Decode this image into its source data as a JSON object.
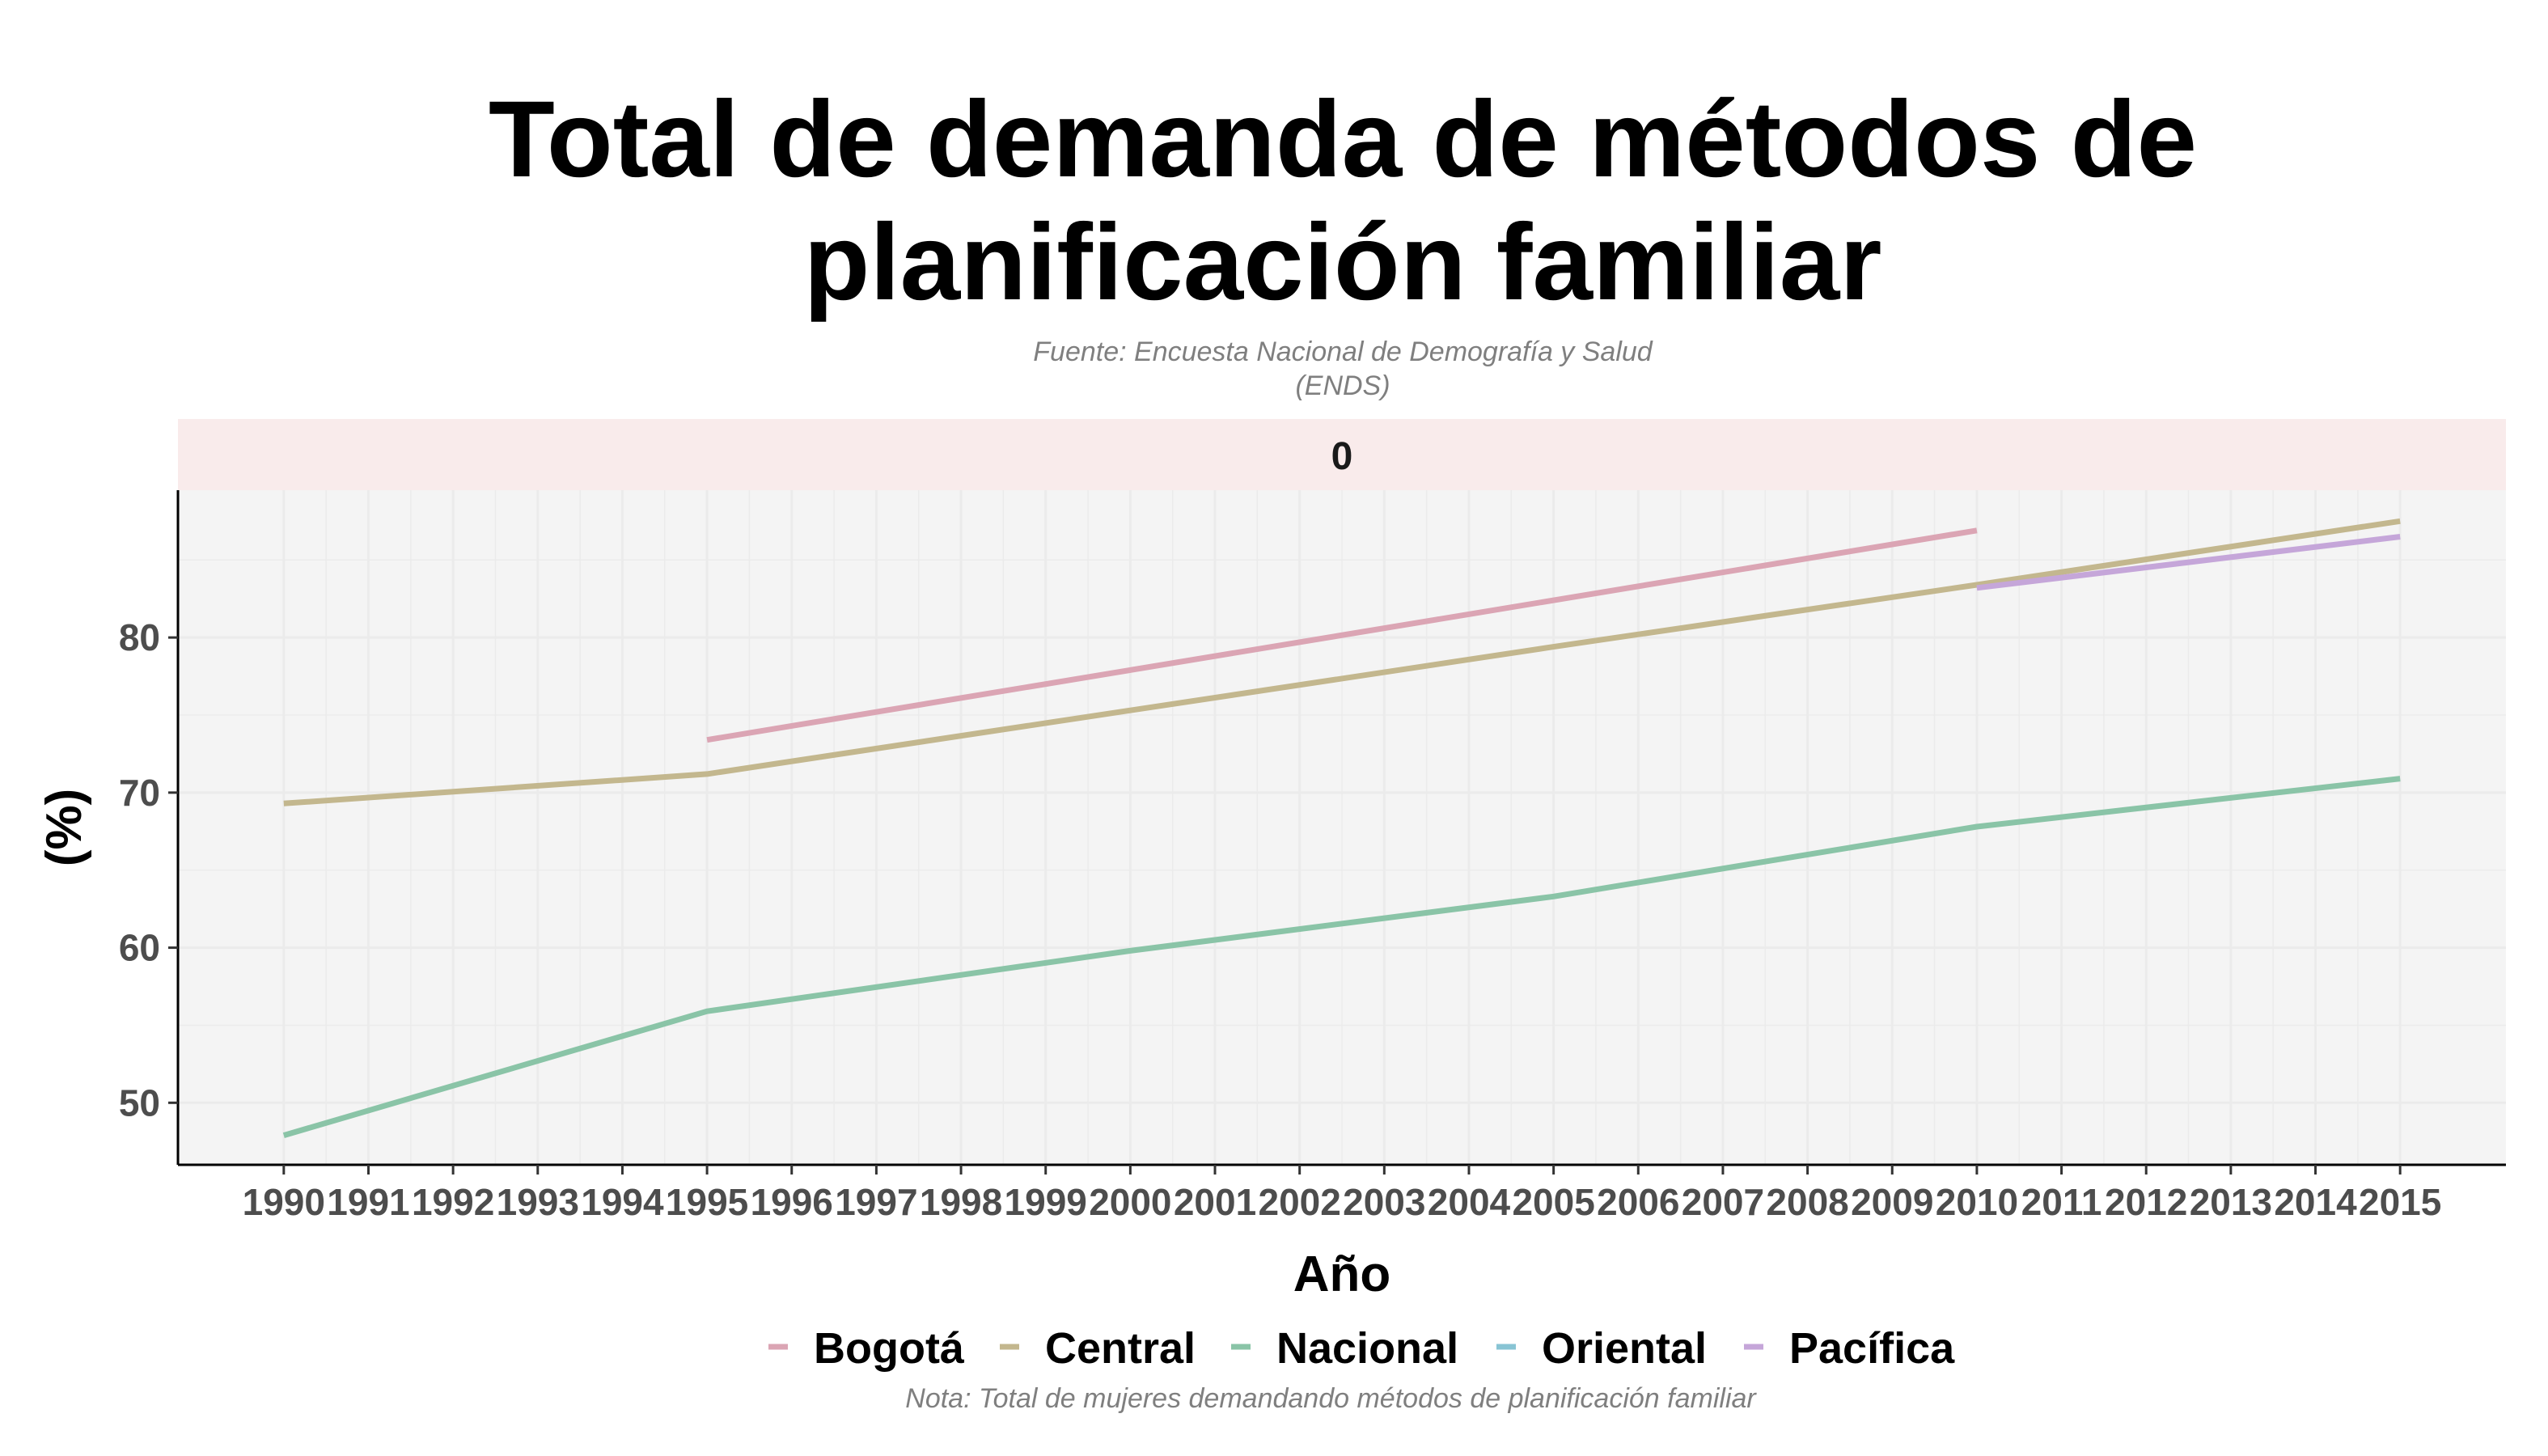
{
  "chart_data": {
    "type": "line",
    "title_lines": [
      "Total de demanda de métodos de",
      "planificación familiar"
    ],
    "subtitle_lines": [
      "Fuente: Encuesta Nacional de Demografía y Salud",
      "(ENDS)"
    ],
    "facet_label": "0",
    "xlabel": "Año",
    "ylabel": "(%)",
    "caption": "Nota: Total de mujeres demandando métodos de planificación familiar",
    "x_ticks": [
      "1990",
      "1991",
      "1992",
      "1993",
      "1994",
      "1995",
      "1996",
      "1997",
      "1998",
      "1999",
      "2000",
      "2001",
      "2002",
      "2003",
      "2004",
      "2005",
      "2006",
      "2007",
      "2008",
      "2009",
      "2010",
      "2011",
      "2012",
      "2013",
      "2014",
      "2015"
    ],
    "y_ticks": [
      50,
      60,
      70,
      80
    ],
    "xlim": [
      1988.75,
      2016.25
    ],
    "ylim": [
      46,
      89.5
    ],
    "grid": true,
    "legend_position": "bottom",
    "panel_background": "#f4f4f4",
    "strip_background": "#f9ebeb",
    "series": [
      {
        "name": "Bogotá",
        "color": "#dba5b4",
        "x": [
          1995,
          2010
        ],
        "y": [
          73.4,
          86.9
        ]
      },
      {
        "name": "Central",
        "color": "#c3b78e",
        "x": [
          1990,
          1995,
          2000,
          2005,
          2010,
          2015
        ],
        "y": [
          69.3,
          71.2,
          75.3,
          79.4,
          83.4,
          87.5
        ]
      },
      {
        "name": "Nacional",
        "color": "#8ac4a7",
        "x": [
          1990,
          1995,
          2000,
          2005,
          2010,
          2015
        ],
        "y": [
          47.9,
          55.9,
          59.8,
          63.3,
          67.8,
          70.9
        ]
      },
      {
        "name": "Oriental",
        "color": "#88c4d4",
        "x": [],
        "y": []
      },
      {
        "name": "Pacífica",
        "color": "#c5a6d9",
        "x": [
          2010,
          2015
        ],
        "y": [
          83.2,
          86.5
        ]
      }
    ]
  }
}
